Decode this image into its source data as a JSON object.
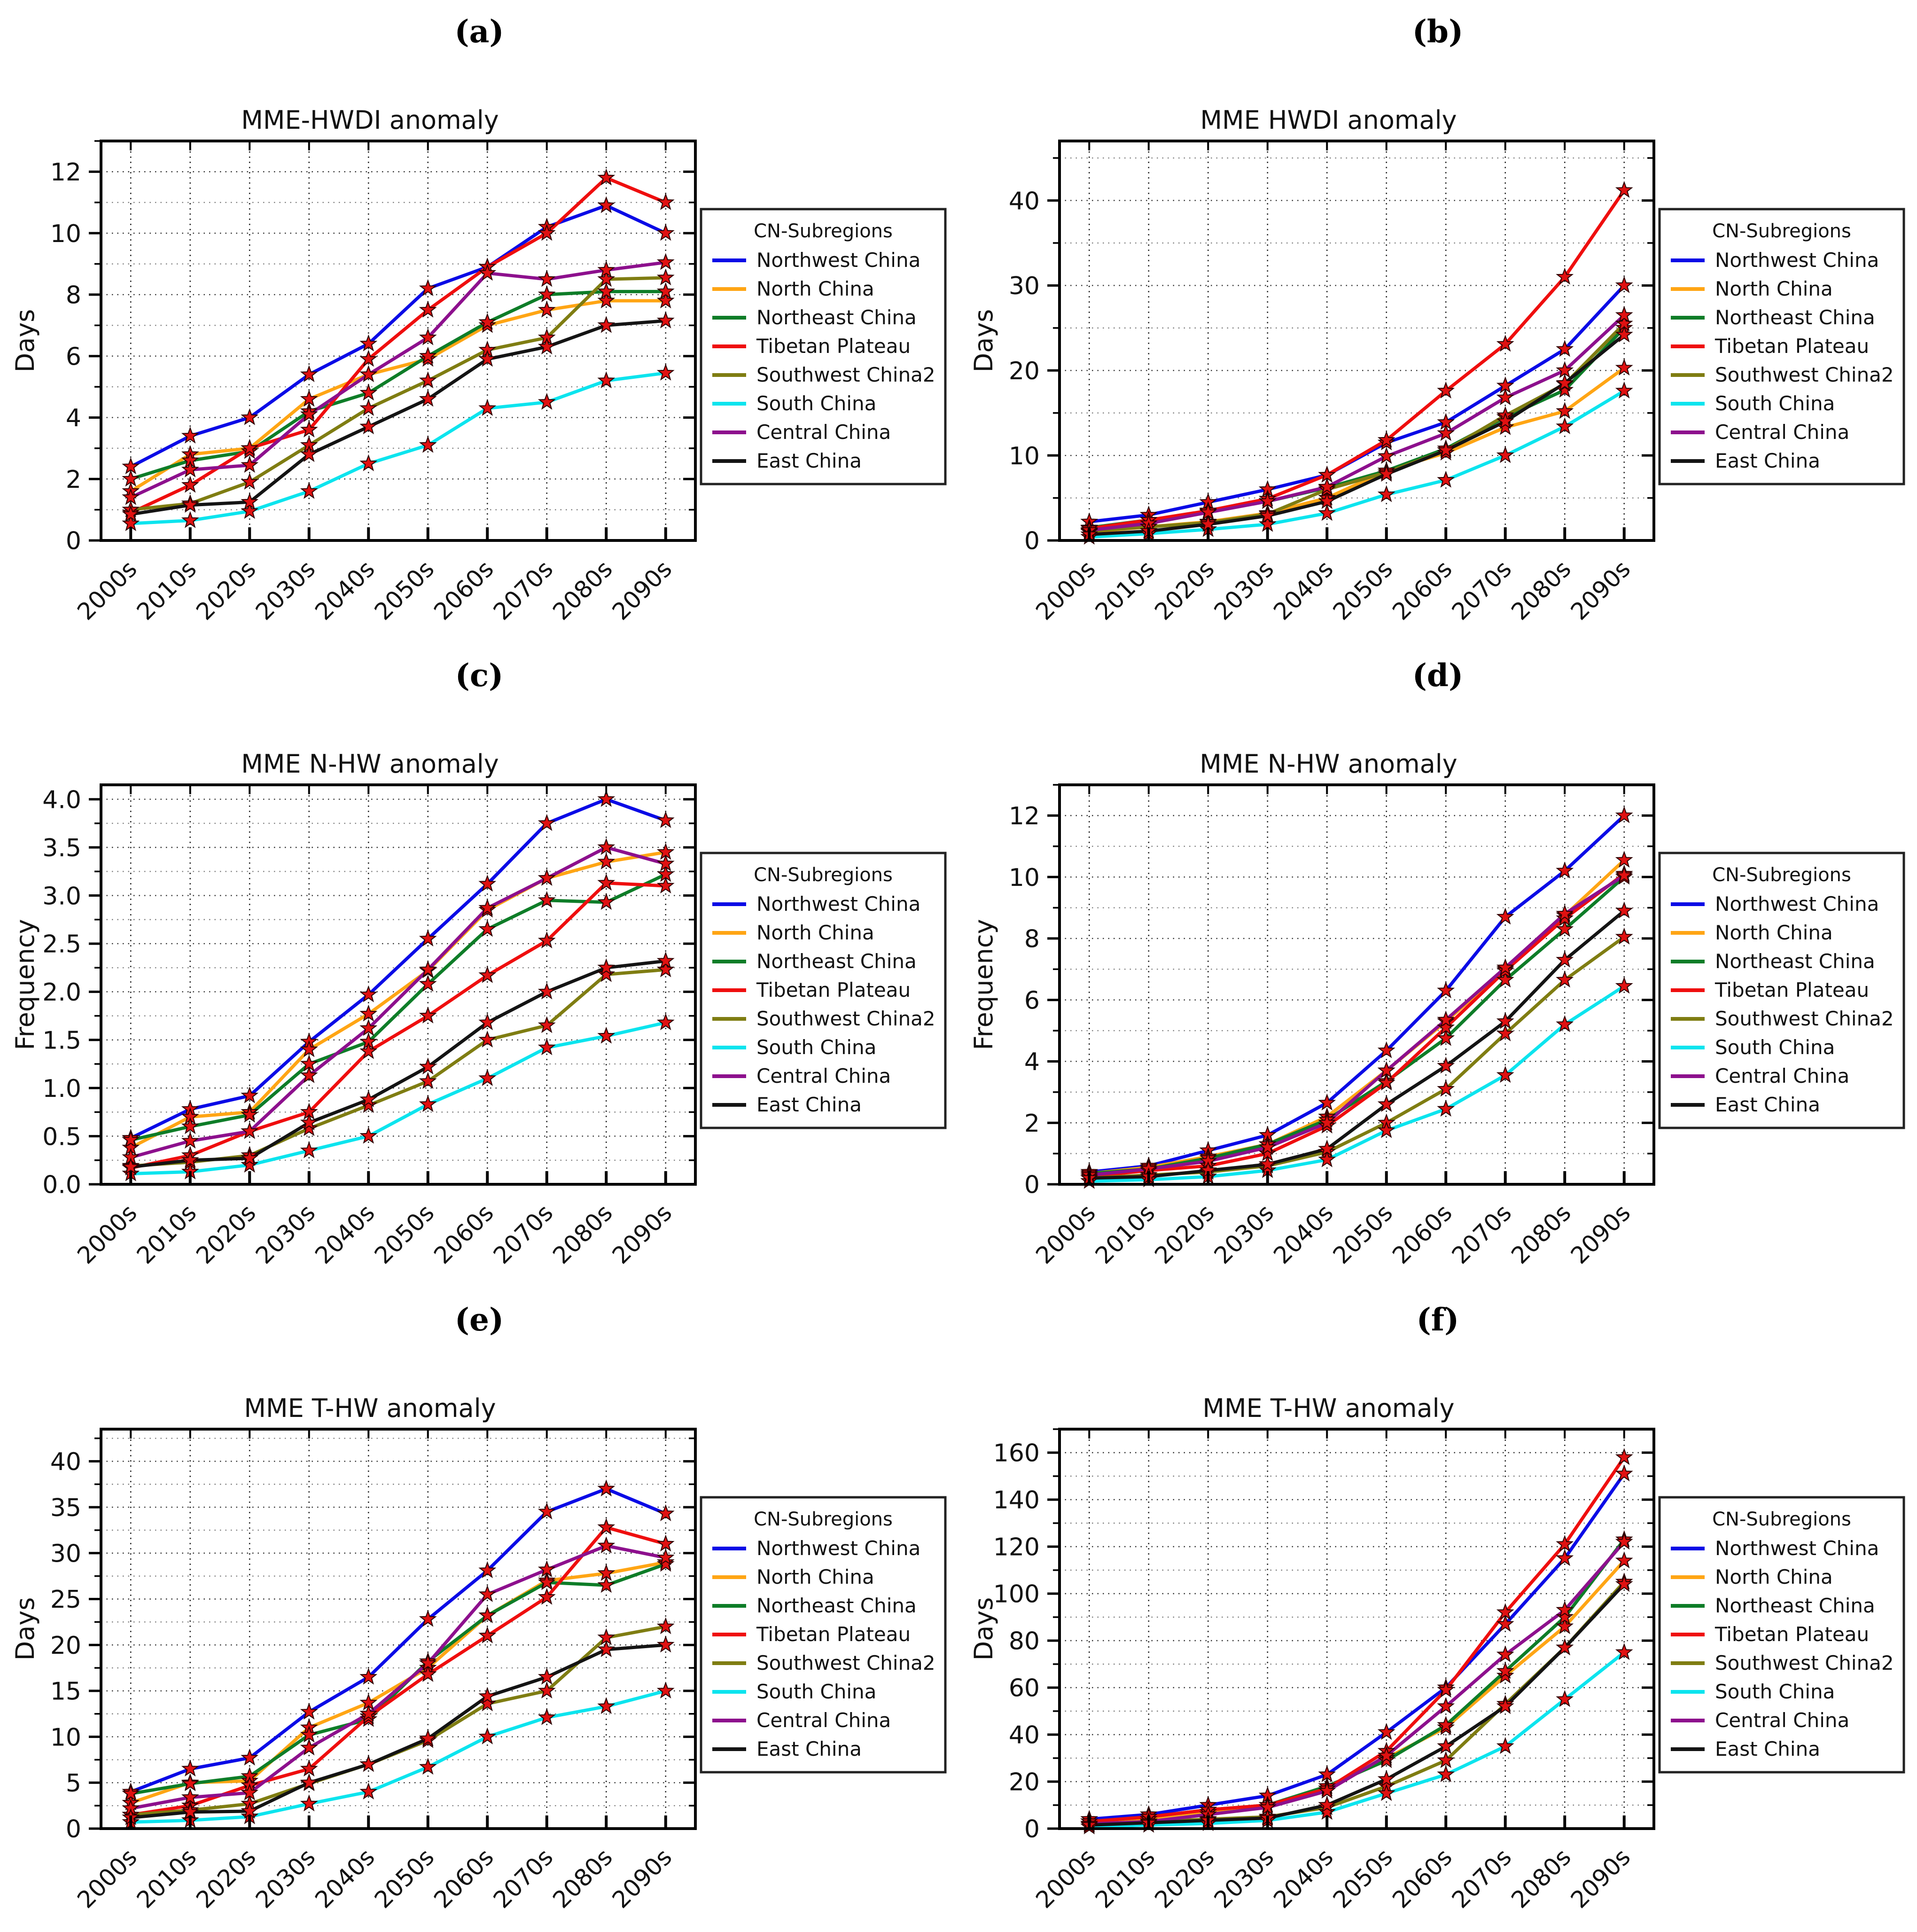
{
  "page": {
    "background": "#ffffff"
  },
  "categories": [
    "2000s",
    "2010s",
    "2020s",
    "2030s",
    "2040s",
    "2050s",
    "2060s",
    "2070s",
    "2080s",
    "2090s"
  ],
  "legend": {
    "title": "CN-Subregions",
    "entries": [
      {
        "name": "Northwest China",
        "color": "#0a0ae6"
      },
      {
        "name": "North China",
        "color": "#ffa514"
      },
      {
        "name": "Northeast China",
        "color": "#0e7d28"
      },
      {
        "name": "Tibetan Plateau",
        "color": "#ef0e0e"
      },
      {
        "name": "Southwest China2",
        "color": "#7f7d12"
      },
      {
        "name": "South China",
        "color": "#0ce4ee"
      },
      {
        "name": "Central China",
        "color": "#8d108d"
      },
      {
        "name": "East China",
        "color": "#141414"
      }
    ],
    "marker": {
      "shape": "star",
      "fill": "#e01111",
      "edge": "#2a0000"
    }
  },
  "chart_data": [
    {
      "panel": "(a)",
      "type": "line",
      "title": "MME-HWDI anomaly",
      "xlabel": "",
      "ylabel": "Days",
      "ylim": [
        0,
        13
      ],
      "ytick_vals": [
        0,
        2,
        4,
        6,
        8,
        10,
        12
      ],
      "ytick_labels": [
        "0",
        "2",
        "4",
        "6",
        "8",
        "10",
        "12"
      ],
      "yminor_step": 1,
      "grid": true,
      "legend_position": "right",
      "series": [
        {
          "name": "Northwest China",
          "values": [
            2.4,
            3.4,
            4.0,
            5.4,
            6.4,
            8.2,
            8.9,
            10.2,
            10.9,
            10.0
          ]
        },
        {
          "name": "North China",
          "values": [
            1.6,
            2.8,
            3.0,
            4.6,
            5.4,
            5.9,
            7.0,
            7.5,
            7.8,
            7.8
          ]
        },
        {
          "name": "Northeast China",
          "values": [
            2.0,
            2.6,
            2.9,
            4.2,
            4.8,
            6.0,
            7.1,
            8.0,
            8.1,
            8.1
          ]
        },
        {
          "name": "Tibetan Plateau",
          "values": [
            0.9,
            1.8,
            3.0,
            3.6,
            5.9,
            7.5,
            8.9,
            10.0,
            11.8,
            11.0
          ]
        },
        {
          "name": "Southwest China2",
          "values": [
            1.0,
            1.2,
            1.9,
            3.1,
            4.3,
            5.2,
            6.2,
            6.6,
            8.5,
            8.55
          ]
        },
        {
          "name": "South China",
          "values": [
            0.55,
            0.65,
            0.95,
            1.6,
            2.5,
            3.1,
            4.3,
            4.5,
            5.2,
            5.45
          ]
        },
        {
          "name": "Central China",
          "values": [
            1.4,
            2.3,
            2.45,
            4.1,
            5.4,
            6.6,
            8.7,
            8.5,
            8.8,
            9.05
          ]
        },
        {
          "name": "East China",
          "values": [
            0.85,
            1.15,
            1.25,
            2.8,
            3.7,
            4.6,
            5.9,
            6.3,
            7.0,
            7.15
          ]
        }
      ]
    },
    {
      "panel": "(b)",
      "type": "line",
      "title": "MME HWDI anomaly",
      "xlabel": "",
      "ylabel": "Days",
      "ylim": [
        0,
        47
      ],
      "ytick_vals": [
        0,
        10,
        20,
        30,
        40
      ],
      "ytick_labels": [
        "0",
        "10",
        "20",
        "30",
        "40"
      ],
      "yminor_step": 5,
      "grid": true,
      "legend_position": "right",
      "series": [
        {
          "name": "Northwest China",
          "values": [
            2.2,
            3.0,
            4.5,
            6.0,
            7.7,
            11.5,
            13.9,
            18.2,
            22.5,
            30.0
          ]
        },
        {
          "name": "North China",
          "values": [
            1.0,
            1.6,
            2.2,
            3.2,
            5.0,
            8.2,
            10.3,
            13.3,
            15.2,
            20.3
          ]
        },
        {
          "name": "Northeast China",
          "values": [
            1.5,
            2.4,
            3.4,
            4.6,
            6.2,
            8.2,
            10.8,
            14.5,
            17.7,
            25.0
          ]
        },
        {
          "name": "Tibetan Plateau",
          "values": [
            1.4,
            2.4,
            3.5,
            4.9,
            7.7,
            11.8,
            17.6,
            23.1,
            31.0,
            41.2
          ]
        },
        {
          "name": "Southwest China2",
          "values": [
            1.1,
            1.6,
            2.1,
            3.1,
            6.0,
            8.0,
            10.6,
            14.7,
            18.4,
            25.5
          ]
        },
        {
          "name": "South China",
          "values": [
            0.4,
            0.8,
            1.3,
            1.9,
            3.2,
            5.4,
            7.1,
            10.0,
            13.4,
            17.6
          ]
        },
        {
          "name": "Central China",
          "values": [
            1.2,
            2.0,
            3.3,
            4.6,
            6.3,
            9.9,
            12.6,
            16.8,
            20.0,
            26.5
          ]
        },
        {
          "name": "East China",
          "values": [
            0.7,
            1.1,
            1.9,
            2.9,
            4.6,
            7.8,
            10.6,
            14.0,
            18.5,
            24.2
          ]
        }
      ]
    },
    {
      "panel": "(c)",
      "type": "line",
      "title": "MME N-HW anomaly",
      "xlabel": "",
      "ylabel": "Frequency",
      "ylim": [
        0,
        4.15
      ],
      "ytick_vals": [
        0,
        0.5,
        1.0,
        1.5,
        2.0,
        2.5,
        3.0,
        3.5,
        4.0
      ],
      "ytick_labels": [
        "0.0",
        "0.5",
        "1.0",
        "1.5",
        "2.0",
        "2.5",
        "3.0",
        "3.5",
        "4.0"
      ],
      "yminor_step": 0.25,
      "grid": true,
      "legend_position": "right",
      "series": [
        {
          "name": "Northwest China",
          "values": [
            0.48,
            0.78,
            0.92,
            1.48,
            1.97,
            2.55,
            3.12,
            3.75,
            4.0,
            3.78
          ]
        },
        {
          "name": "North China",
          "values": [
            0.38,
            0.7,
            0.75,
            1.4,
            1.77,
            2.22,
            2.85,
            3.18,
            3.35,
            3.45
          ]
        },
        {
          "name": "Northeast China",
          "values": [
            0.46,
            0.6,
            0.72,
            1.25,
            1.48,
            2.08,
            2.65,
            2.95,
            2.93,
            3.22
          ]
        },
        {
          "name": "Tibetan Plateau",
          "values": [
            0.17,
            0.3,
            0.55,
            0.75,
            1.38,
            1.75,
            2.17,
            2.53,
            3.13,
            3.1
          ]
        },
        {
          "name": "Southwest China2",
          "values": [
            0.19,
            0.23,
            0.3,
            0.58,
            0.82,
            1.07,
            1.5,
            1.65,
            2.18,
            2.23
          ]
        },
        {
          "name": "South China",
          "values": [
            0.11,
            0.13,
            0.2,
            0.35,
            0.5,
            0.83,
            1.1,
            1.42,
            1.54,
            1.68
          ]
        },
        {
          "name": "Central China",
          "values": [
            0.28,
            0.45,
            0.55,
            1.13,
            1.62,
            2.23,
            2.87,
            3.18,
            3.5,
            3.33
          ]
        },
        {
          "name": "East China",
          "values": [
            0.18,
            0.25,
            0.27,
            0.64,
            0.88,
            1.22,
            1.68,
            2.0,
            2.25,
            2.32
          ]
        }
      ]
    },
    {
      "panel": "(d)",
      "type": "line",
      "title": "MME N-HW anomaly",
      "xlabel": "",
      "ylabel": "Frequency",
      "ylim": [
        0,
        13
      ],
      "ytick_vals": [
        0,
        2,
        4,
        6,
        8,
        10,
        12
      ],
      "ytick_labels": [
        "0",
        "2",
        "4",
        "6",
        "8",
        "10",
        "12"
      ],
      "yminor_step": 1,
      "grid": true,
      "legend_position": "right",
      "series": [
        {
          "name": "Northwest China",
          "values": [
            0.4,
            0.6,
            1.1,
            1.6,
            2.65,
            4.35,
            6.3,
            8.7,
            10.2,
            12.0
          ]
        },
        {
          "name": "North China",
          "values": [
            0.35,
            0.55,
            0.9,
            1.3,
            2.2,
            3.7,
            5.3,
            7.0,
            8.75,
            10.55
          ]
        },
        {
          "name": "Northeast China",
          "values": [
            0.35,
            0.5,
            0.85,
            1.3,
            2.1,
            3.35,
            4.75,
            6.65,
            8.3,
            10.0
          ]
        },
        {
          "name": "Tibetan Plateau",
          "values": [
            0.25,
            0.45,
            0.6,
            1.0,
            1.9,
            3.3,
            5.1,
            6.95,
            8.65,
            10.1
          ]
        },
        {
          "name": "Southwest China2",
          "values": [
            0.2,
            0.3,
            0.4,
            0.6,
            1.05,
            2.0,
            3.1,
            4.9,
            6.65,
            8.05
          ]
        },
        {
          "name": "South China",
          "values": [
            0.1,
            0.15,
            0.25,
            0.45,
            0.8,
            1.75,
            2.45,
            3.55,
            5.2,
            6.45
          ]
        },
        {
          "name": "Central China",
          "values": [
            0.3,
            0.5,
            0.75,
            1.2,
            2.0,
            3.7,
            5.35,
            7.05,
            8.8,
            10.05
          ]
        },
        {
          "name": "East China",
          "values": [
            0.2,
            0.25,
            0.45,
            0.65,
            1.15,
            2.6,
            3.85,
            5.3,
            7.3,
            8.9
          ]
        }
      ]
    },
    {
      "panel": "(e)",
      "type": "line",
      "title": "MME T-HW anomaly",
      "xlabel": "",
      "ylabel": "Days",
      "ylim": [
        0,
        43.5
      ],
      "ytick_vals": [
        0,
        5,
        10,
        15,
        20,
        25,
        30,
        35,
        40
      ],
      "ytick_labels": [
        "0",
        "5",
        "10",
        "15",
        "20",
        "25",
        "30",
        "35",
        "40"
      ],
      "yminor_step": 2.5,
      "grid": true,
      "legend_position": "right",
      "series": [
        {
          "name": "Northwest China",
          "values": [
            4.0,
            6.5,
            7.7,
            12.7,
            16.5,
            22.8,
            28.1,
            34.5,
            37.0,
            34.3
          ]
        },
        {
          "name": "North China",
          "values": [
            2.8,
            5.0,
            5.2,
            11.0,
            13.7,
            17.5,
            23.2,
            27.0,
            27.8,
            29.0
          ]
        },
        {
          "name": "Northeast China",
          "values": [
            3.8,
            4.9,
            5.7,
            10.2,
            11.9,
            18.2,
            23.2,
            26.8,
            26.5,
            28.8
          ]
        },
        {
          "name": "Tibetan Plateau",
          "values": [
            1.5,
            2.5,
            4.7,
            6.5,
            12.2,
            16.8,
            21.0,
            25.2,
            32.8,
            31.0
          ]
        },
        {
          "name": "Southwest China2",
          "values": [
            1.5,
            2.0,
            2.7,
            4.9,
            7.0,
            9.6,
            13.6,
            15.0,
            20.8,
            22.0
          ]
        },
        {
          "name": "South China",
          "values": [
            0.7,
            0.9,
            1.3,
            2.7,
            4.0,
            6.7,
            10.0,
            12.1,
            13.3,
            15.0
          ]
        },
        {
          "name": "Central China",
          "values": [
            2.2,
            3.4,
            3.9,
            8.8,
            12.5,
            18.0,
            25.5,
            28.2,
            30.8,
            29.5
          ]
        },
        {
          "name": "East China",
          "values": [
            1.2,
            1.8,
            1.9,
            5.0,
            7.0,
            9.8,
            14.4,
            16.5,
            19.5,
            20.0
          ]
        }
      ]
    },
    {
      "panel": "(f)",
      "type": "line",
      "title": "MME T-HW anomaly",
      "xlabel": "",
      "ylabel": "Days",
      "ylim": [
        0,
        170
      ],
      "ytick_vals": [
        0,
        20,
        40,
        60,
        80,
        100,
        120,
        140,
        160
      ],
      "ytick_labels": [
        "0",
        "20",
        "40",
        "60",
        "80",
        "100",
        "120",
        "140",
        "160"
      ],
      "yminor_step": 10,
      "grid": true,
      "legend_position": "right",
      "series": [
        {
          "name": "Northwest China",
          "values": [
            4,
            6,
            10,
            14,
            23,
            41,
            60,
            87,
            115,
            151
          ]
        },
        {
          "name": "North China",
          "values": [
            3,
            4,
            7,
            9,
            17,
            30,
            43,
            65,
            86,
            114
          ]
        },
        {
          "name": "Northeast China",
          "values": [
            3,
            5,
            8,
            10,
            18,
            29,
            44,
            67,
            90,
            123
          ]
        },
        {
          "name": "Tibetan Plateau",
          "values": [
            3,
            5,
            8,
            10,
            17,
            33,
            59,
            92,
            121,
            158
          ]
        },
        {
          "name": "Southwest China2",
          "values": [
            2,
            3,
            4,
            5,
            9,
            18,
            29,
            53,
            77,
            105
          ]
        },
        {
          "name": "South China",
          "values": [
            0.8,
            1.5,
            2.2,
            3.5,
            7,
            15,
            23,
            35,
            55,
            75
          ]
        },
        {
          "name": "Central China",
          "values": [
            2,
            3,
            6,
            9,
            16,
            31,
            52,
            74,
            93,
            122
          ]
        },
        {
          "name": "East China",
          "values": [
            1.5,
            2.5,
            3.5,
            4.5,
            10,
            21,
            35,
            52,
            77,
            104
          ]
        }
      ]
    }
  ]
}
